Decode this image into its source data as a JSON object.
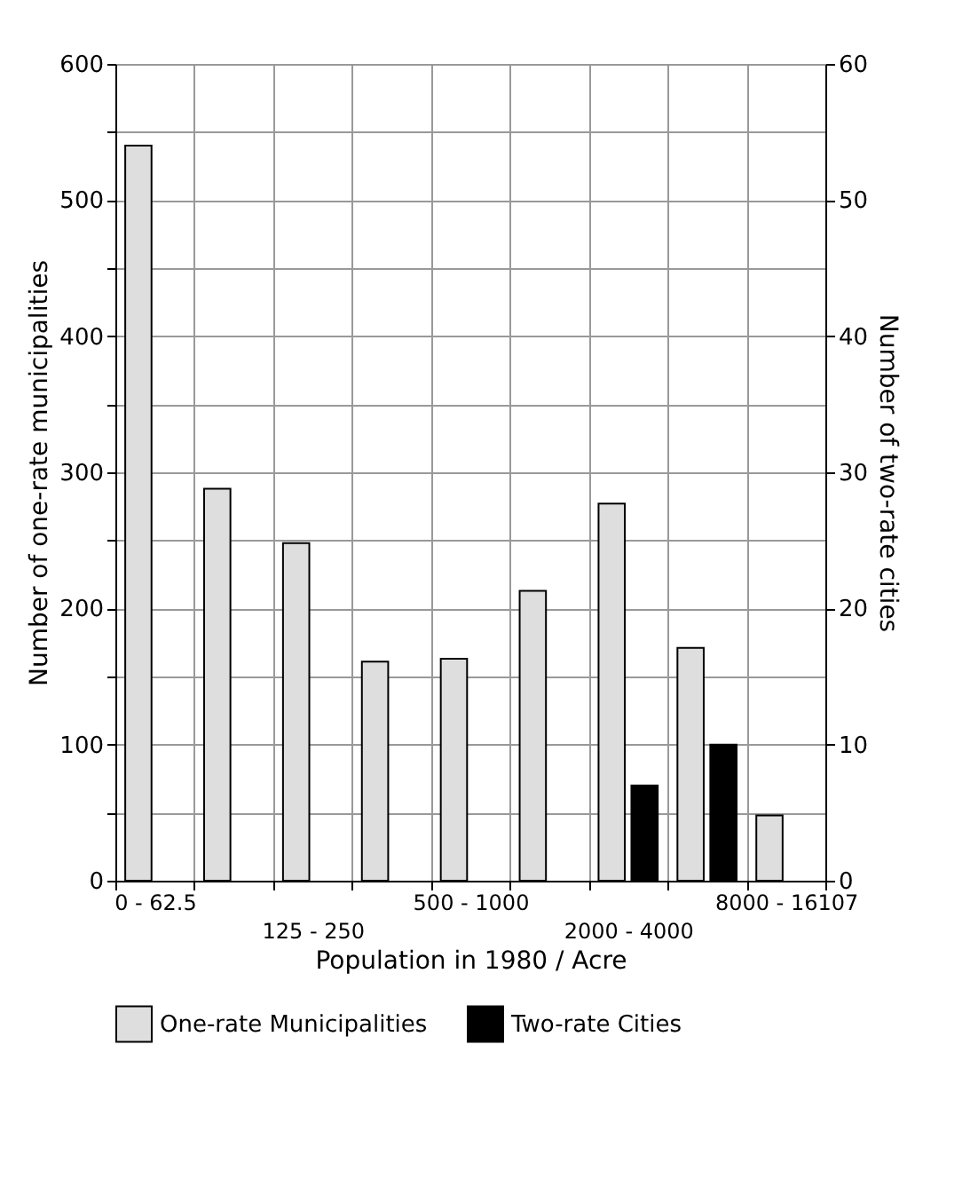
{
  "chart_data": {
    "type": "bar",
    "xlabel": "Population in 1980 / Acre",
    "ylabel": "Number of one-rate municipalities",
    "y2label": "Number of two-rate cities",
    "categories": [
      "0 - 62.5",
      null,
      "125 - 250",
      null,
      "500 - 1000",
      null,
      "2000 - 4000",
      null,
      "8000 - 16107"
    ],
    "series": [
      {
        "name": "One-rate Municipalities",
        "color": "#dedede",
        "values": [
          540,
          288,
          248,
          161,
          163,
          213,
          277,
          171,
          48
        ]
      },
      {
        "name": "Two-rate Cities",
        "color": "#000000",
        "axis": "y2",
        "values": [
          null,
          null,
          null,
          null,
          null,
          null,
          7,
          10,
          null
        ]
      }
    ],
    "ylim": [
      0,
      600
    ],
    "yticks": [
      0,
      {
        "value": 50,
        "label": null
      },
      100,
      {
        "value": 150,
        "label": null
      },
      200,
      {
        "value": 250,
        "label": null
      },
      300,
      {
        "value": 350,
        "label": null
      },
      400,
      {
        "value": 450,
        "label": null
      },
      500,
      {
        "value": 550,
        "label": null
      },
      600
    ],
    "y2lim": [
      0,
      60
    ],
    "y2ticks": [
      0,
      10,
      20,
      30,
      40,
      50,
      60
    ],
    "grid": true,
    "legend": "bottom"
  }
}
